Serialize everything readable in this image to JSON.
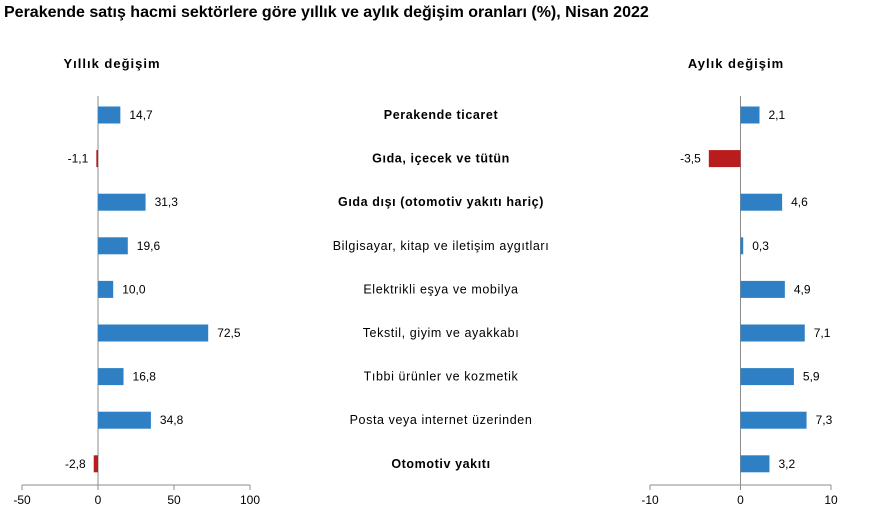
{
  "title": "Perakende satış hacmi sektörlere göre yıllık ve aylık değişim oranları (%), Nisan 2022",
  "chart_data": {
    "type": "bar",
    "orientation": "horizontal",
    "categories": [
      "Perakende ticaret",
      "Gıda, içecek ve tütün",
      "Gıda dışı (otomotiv yakıtı hariç)",
      "Bilgisayar, kitap ve iletişim aygıtları",
      "Elektrikli eşya ve mobilya",
      "Tekstil, giyim ve ayakkabı",
      "Tıbbi ürünler ve kozmetik",
      "Posta veya internet üzerinden",
      "Otomotiv yakıtı"
    ],
    "bold_categories": [
      0,
      1,
      2,
      8
    ],
    "panels": [
      {
        "title": "Yıllık değişim",
        "values": [
          14.7,
          -1.1,
          31.3,
          19.6,
          10.0,
          72.5,
          16.8,
          34.8,
          -2.8
        ],
        "labels": [
          "14,7",
          "-1,1",
          "31,3",
          "19,6",
          "10,0",
          "72,5",
          "16,8",
          "34,8",
          "-2,8"
        ],
        "xlim": [
          -50,
          100
        ],
        "ticks": [
          -50,
          0,
          50,
          100
        ]
      },
      {
        "title": "Aylık değişim",
        "values": [
          2.1,
          -3.5,
          4.6,
          0.3,
          4.9,
          7.1,
          5.9,
          7.3,
          3.2
        ],
        "labels": [
          "2,1",
          "-3,5",
          "4,6",
          "0,3",
          "4,9",
          "7,1",
          "5,9",
          "7,3",
          "3,2"
        ],
        "xlim": [
          -10,
          10
        ],
        "ticks": [
          -10,
          0,
          10
        ]
      }
    ],
    "colors": {
      "positive": "#2e7fc3",
      "negative": "#b81c1c"
    },
    "grid": false
  }
}
